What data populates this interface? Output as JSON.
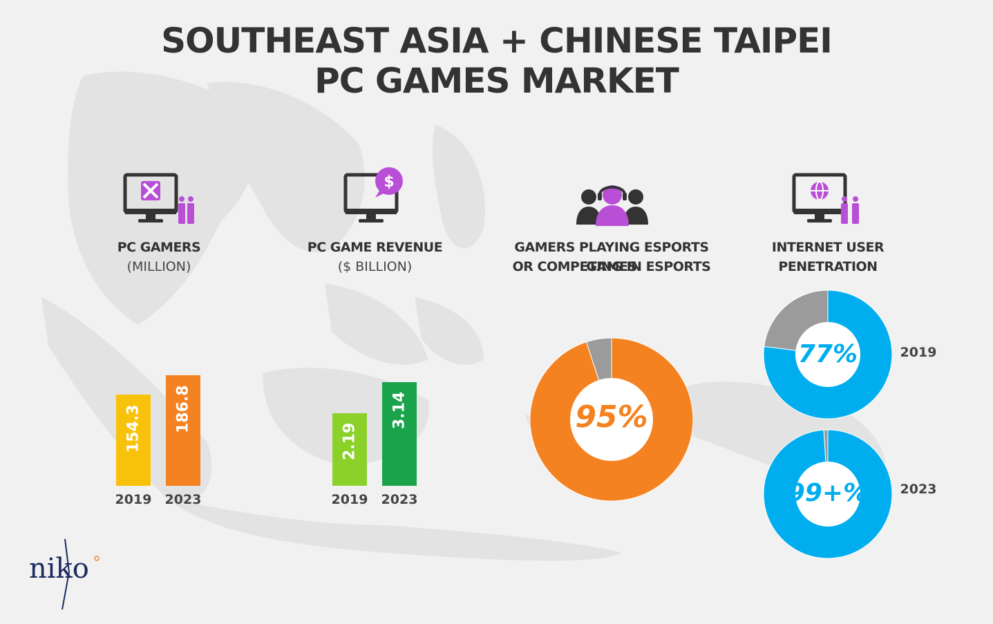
{
  "title": {
    "line1": "SOUTHEAST ASIA + CHINESE TAIPEI",
    "line2": "PC GAMES MARKET"
  },
  "panels": {
    "gamers": {
      "label": "PC GAMERS",
      "sublabel": "(MILLION)",
      "icon": "monitor-swords-people-icon"
    },
    "revenue": {
      "label": "PC GAME REVENUE",
      "sublabel": "($ BILLION)",
      "icon": "monitor-dollar-icon"
    },
    "esports": {
      "label_line1": "GAMERS PLAYING ESPORTS GAMES",
      "label_line2": "OR COMPETING IN ESPORTS",
      "icon": "headset-crowd-icon"
    },
    "internet": {
      "label_line1": "INTERNET USER",
      "label_line2": "PENETRATION",
      "icon": "monitor-globe-people-icon"
    }
  },
  "logo": {
    "text": "niko"
  },
  "colors": {
    "bar_2019_gamers": "#f9c20a",
    "bar_2023_gamers": "#f58220",
    "bar_2019_revenue": "#8cd12a",
    "bar_2023_revenue": "#1aa34a",
    "esports_donut": "#f58220",
    "internet_donut": "#00aeef",
    "remainder": "#9b9b9b",
    "icon_accent": "#b84fd6"
  },
  "chart_data": [
    {
      "type": "bar",
      "title": "PC GAMERS",
      "ylabel": "(MILLION)",
      "categories": [
        "2019",
        "2023"
      ],
      "values": [
        154.3,
        186.8
      ],
      "value_labels": [
        "154.3",
        "186.8"
      ]
    },
    {
      "type": "bar",
      "title": "PC GAME REVENUE",
      "ylabel": "($ BILLION)",
      "categories": [
        "2019",
        "2023"
      ],
      "values": [
        2.19,
        3.14
      ],
      "value_labels": [
        "2.19",
        "3.14"
      ]
    },
    {
      "type": "pie",
      "title": "GAMERS PLAYING ESPORTS GAMES OR COMPETING IN ESPORTS",
      "values": [
        95,
        5
      ],
      "center_label": "95%"
    },
    {
      "type": "pie",
      "title": "INTERNET USER PENETRATION",
      "year": "2019",
      "values": [
        77,
        23
      ],
      "center_label": "77%"
    },
    {
      "type": "pie",
      "title": "INTERNET USER PENETRATION",
      "year": "2023",
      "values": [
        99,
        1
      ],
      "center_label": "99+%"
    }
  ]
}
